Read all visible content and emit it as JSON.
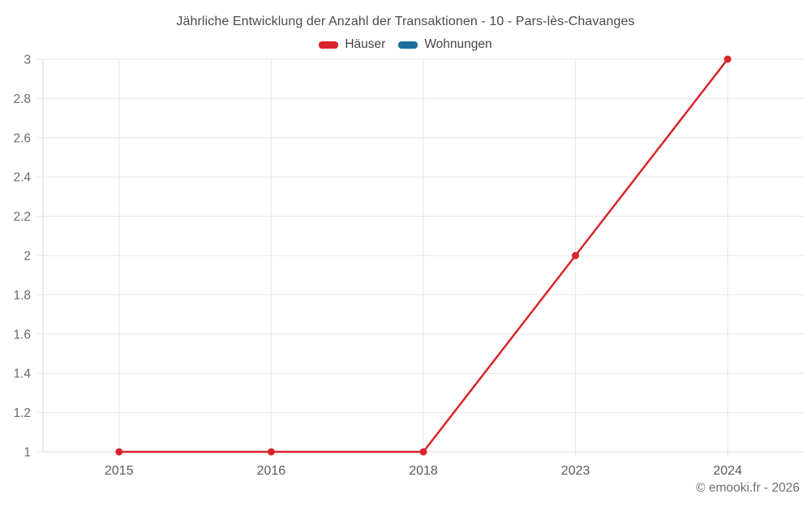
{
  "legend": [
    {
      "label": "Häuser",
      "color": "#d8242b"
    },
    {
      "label": "Wohnungen",
      "color": "#1a6d9e"
    }
  ],
  "footer": {
    "copyright": "© emooki.fr - 2026"
  },
  "chart_data": {
    "type": "line",
    "title": "Jährliche Entwicklung der Anzahl der Transaktionen - 10 - Pars-lès-Chavanges",
    "categories": [
      "2015",
      "2016",
      "2018",
      "2023",
      "2024"
    ],
    "series": [
      {
        "name": "Häuser",
        "color": "#d8242b",
        "values": [
          1,
          1,
          1,
          2,
          3
        ]
      },
      {
        "name": "Wohnungen",
        "color": "#1a6d9e",
        "values": []
      }
    ],
    "xlabel": "",
    "ylabel": "",
    "ylim": [
      1,
      3
    ],
    "yticks": [
      1,
      1.2,
      1.4,
      1.6,
      1.8,
      2,
      2.2,
      2.4,
      2.6,
      2.8,
      3
    ],
    "grid": true,
    "legend_position": "top"
  }
}
